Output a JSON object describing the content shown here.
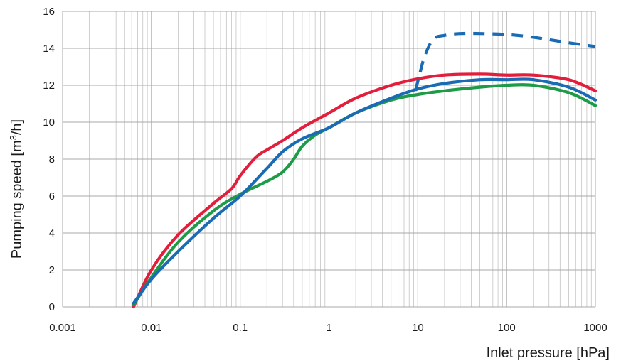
{
  "chart_data": {
    "type": "line",
    "xscale": "log",
    "xlim": [
      0.001,
      1000
    ],
    "ylim": [
      0,
      16
    ],
    "grid": true,
    "xlabel": "Inlet pressure [hPa]",
    "ylabel_parts": {
      "main": "Pumping speed [m",
      "sup": "3",
      "tail": "/h]"
    },
    "x_ticks": [
      {
        "value": 0.001,
        "label": "0.001"
      },
      {
        "value": 0.01,
        "label": "0.01"
      },
      {
        "value": 0.1,
        "label": "0.1"
      },
      {
        "value": 1,
        "label": "1"
      },
      {
        "value": 10,
        "label": "10"
      },
      {
        "value": 100,
        "label": "100"
      },
      {
        "value": 1000,
        "label": "1000"
      }
    ],
    "y_ticks": [
      {
        "value": 0,
        "label": "0"
      },
      {
        "value": 2,
        "label": "2"
      },
      {
        "value": 4,
        "label": "4"
      },
      {
        "value": 6,
        "label": "6"
      },
      {
        "value": 8,
        "label": "8"
      },
      {
        "value": 10,
        "label": "10"
      },
      {
        "value": 12,
        "label": "12"
      },
      {
        "value": 14,
        "label": "14"
      },
      {
        "value": 16,
        "label": "16"
      }
    ],
    "series": [
      {
        "color": "#e31e3c",
        "dash": false,
        "points": [
          [
            0.0063,
            0
          ],
          [
            0.01,
            2.0
          ],
          [
            0.02,
            3.9
          ],
          [
            0.05,
            5.6
          ],
          [
            0.08,
            6.4
          ],
          [
            0.1,
            7.1
          ],
          [
            0.15,
            8.1
          ],
          [
            0.2,
            8.5
          ],
          [
            0.3,
            9.0
          ],
          [
            0.5,
            9.7
          ],
          [
            1,
            10.5
          ],
          [
            2,
            11.3
          ],
          [
            5,
            12.0
          ],
          [
            10,
            12.35
          ],
          [
            20,
            12.55
          ],
          [
            50,
            12.6
          ],
          [
            100,
            12.55
          ],
          [
            200,
            12.55
          ],
          [
            500,
            12.3
          ],
          [
            1000,
            11.7
          ]
        ]
      },
      {
        "color": "#1e9b47",
        "dash": false,
        "points": [
          [
            0.0063,
            0.1
          ],
          [
            0.01,
            1.6
          ],
          [
            0.02,
            3.5
          ],
          [
            0.05,
            5.2
          ],
          [
            0.1,
            6.1
          ],
          [
            0.2,
            6.8
          ],
          [
            0.3,
            7.3
          ],
          [
            0.4,
            8.0
          ],
          [
            0.5,
            8.7
          ],
          [
            0.7,
            9.3
          ],
          [
            1,
            9.7
          ],
          [
            2,
            10.5
          ],
          [
            5,
            11.2
          ],
          [
            10,
            11.5
          ],
          [
            20,
            11.7
          ],
          [
            50,
            11.9
          ],
          [
            100,
            12.0
          ],
          [
            200,
            12.0
          ],
          [
            500,
            11.6
          ],
          [
            1000,
            10.9
          ]
        ]
      },
      {
        "color": "#1b6ab4",
        "dash": false,
        "points": [
          [
            0.0063,
            0.2
          ],
          [
            0.01,
            1.5
          ],
          [
            0.02,
            3.0
          ],
          [
            0.05,
            4.8
          ],
          [
            0.1,
            6.0
          ],
          [
            0.2,
            7.5
          ],
          [
            0.3,
            8.4
          ],
          [
            0.5,
            9.1
          ],
          [
            1,
            9.7
          ],
          [
            2,
            10.5
          ],
          [
            5,
            11.3
          ],
          [
            10,
            11.8
          ],
          [
            20,
            12.1
          ],
          [
            50,
            12.3
          ],
          [
            100,
            12.3
          ],
          [
            200,
            12.3
          ],
          [
            500,
            11.9
          ],
          [
            1000,
            11.2
          ]
        ]
      },
      {
        "color": "#1b6ab4",
        "dash": true,
        "points": [
          [
            9.4,
            11.7
          ],
          [
            10.5,
            12.6
          ],
          [
            12,
            13.6
          ],
          [
            15,
            14.5
          ],
          [
            20,
            14.7
          ],
          [
            30,
            14.8
          ],
          [
            50,
            14.8
          ],
          [
            100,
            14.75
          ],
          [
            200,
            14.6
          ],
          [
            500,
            14.3
          ],
          [
            1000,
            14.1
          ]
        ]
      }
    ]
  }
}
